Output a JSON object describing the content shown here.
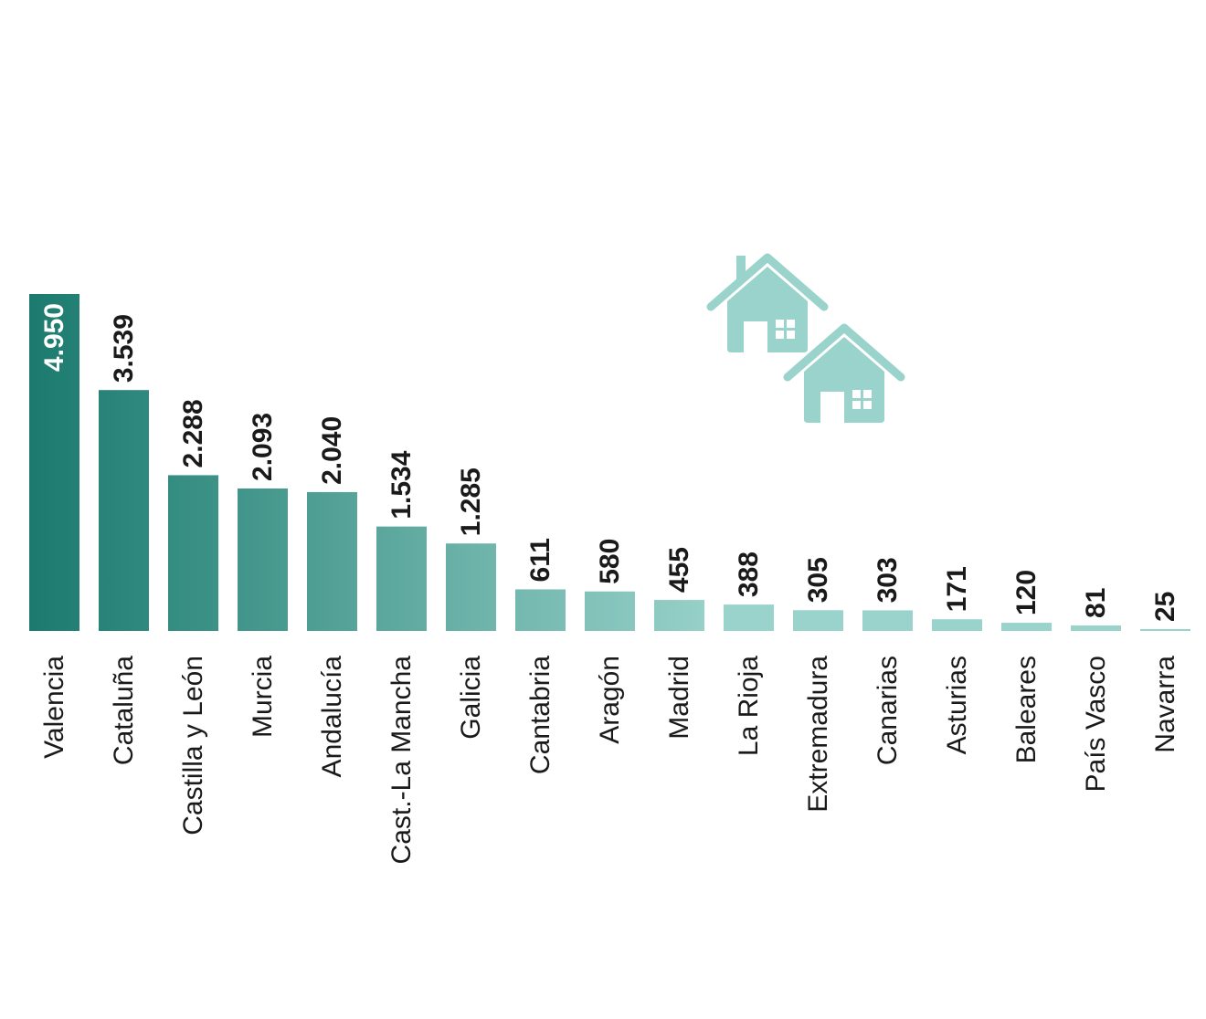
{
  "chart_data": {
    "type": "bar",
    "title": "",
    "xlabel": "",
    "ylabel": "",
    "categories": [
      "Valencia",
      "Cataluña",
      "Castilla y León",
      "Murcia",
      "Andalucía",
      "Cast.-La Mancha",
      "Galicia",
      "Cantabria",
      "Aragón",
      "Madrid",
      "La Rioja",
      "Extremadura",
      "Canarias",
      "Asturias",
      "Baleares",
      "País Vasco",
      "Navarra"
    ],
    "values": [
      4950,
      3539,
      2288,
      2093,
      2040,
      1534,
      1285,
      611,
      580,
      455,
      388,
      305,
      303,
      171,
      120,
      81,
      25
    ],
    "value_labels": [
      "4.950",
      "3.539",
      "2.288",
      "2.093",
      "2.040",
      "1.534",
      "1.285",
      "611",
      "580",
      "455",
      "388",
      "305",
      "303",
      "171",
      "120",
      "81",
      "25"
    ],
    "ylim": [
      0,
      4950
    ],
    "grid": false,
    "legend": "none",
    "colors": {
      "bar_start": "#1b7a6e",
      "bar_end": "#9ad3cb",
      "label_on_bar": "#ffffff",
      "label_above_bar": "#1a1a1a",
      "houses_icon": "#9ad3cb"
    }
  },
  "decoration": {
    "icon": "houses-icon"
  }
}
